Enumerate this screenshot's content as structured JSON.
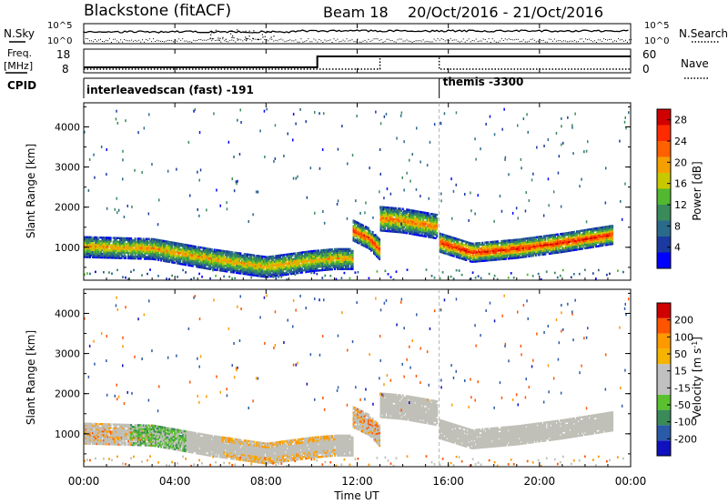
{
  "header": {
    "site": "Blackstone (fitACF)",
    "beam": "Beam 18",
    "date_range": "20/Oct/2016 - 21/Oct/2016"
  },
  "noise_panel": {
    "left_label": "N.Sky",
    "right_label": "N.Search",
    "left_ticks": [
      "10^5",
      "10^0"
    ],
    "right_ticks": [
      "10^5",
      "10^0"
    ]
  },
  "freq_panel": {
    "left_label_1": "Freq.",
    "left_label_2": "[MHz]",
    "left_ticks": [
      "18",
      "8"
    ],
    "right_label": "Nave",
    "right_ticks": [
      "60",
      "0"
    ],
    "freq_step_hour": 10.25,
    "nave_high_start_hour": 13.0,
    "nave_high_end_hour": 15.6
  },
  "cpid": {
    "label": "CPID",
    "segments": [
      {
        "text": "interleavedscan (fast) -191",
        "start_hour": 0
      },
      {
        "text": "themis -3300",
        "start_hour": 15.6
      }
    ]
  },
  "colors": {
    "power_scale": [
      "#0000ff",
      "#1a3aa0",
      "#2a6a8a",
      "#3a8a5a",
      "#52b830",
      "#c8c800",
      "#f5a000",
      "#ff6000",
      "#ff2a00",
      "#d00000"
    ],
    "velocity_scale": [
      "#d00000",
      "#ff5500",
      "#ff9900",
      "#f5b400",
      "#c0c0c0",
      "#c0c0c0",
      "#5ac030",
      "#3a8a5a",
      "#2a5aa8",
      "#1010c0"
    ],
    "ground_scatter": "#c0c0b8"
  },
  "chart_data": [
    {
      "type": "heatmap",
      "title": "Power",
      "xlabel": "Time UT",
      "ylabel": "Slant Range [km]",
      "xlim": [
        0,
        24
      ],
      "ylim": [
        180,
        4600
      ],
      "x_tick_labels": [
        "00:00",
        "04:00",
        "08:00",
        "12:00",
        "16:00",
        "20:00",
        "00:00"
      ],
      "y_tick_labels": [
        "1000",
        "2000",
        "3000",
        "4000"
      ],
      "colorbar_label": "Power [dB]",
      "colorbar_ticks": [
        "4",
        "8",
        "12",
        "16",
        "20",
        "24",
        "28"
      ],
      "colorbar_range": [
        0,
        30
      ],
      "bands": [
        {
          "x": [
            0,
            3,
            5.5,
            8,
            10,
            11,
            11.8
          ],
          "center": [
            1000,
            950,
            700,
            500,
            650,
            700,
            700
          ],
          "half_width": 260,
          "peak_db": 20
        },
        {
          "x": [
            11.8,
            12.5,
            13.0
          ],
          "center": [
            1400,
            1200,
            900
          ],
          "half_width": 250,
          "peak_db": 26
        },
        {
          "x": [
            13.0,
            14.0,
            15.5
          ],
          "center": [
            1700,
            1650,
            1500
          ],
          "half_width": 300,
          "peak_db": 22
        },
        {
          "x": [
            15.6,
            17,
            19,
            21,
            23.2
          ],
          "center": [
            1100,
            850,
            950,
            1100,
            1300
          ],
          "half_width": 230,
          "peak_db": 27
        }
      ]
    },
    {
      "type": "heatmap",
      "title": "Velocity",
      "xlabel": "Time UT",
      "ylabel": "Slant Range [km]",
      "xlim": [
        0,
        24
      ],
      "ylim": [
        180,
        4600
      ],
      "x_tick_labels": [
        "00:00",
        "04:00",
        "08:00",
        "12:00",
        "16:00",
        "20:00",
        "00:00"
      ],
      "y_tick_labels": [
        "1000",
        "2000",
        "3000",
        "4000"
      ],
      "colorbar_label": "Velocity [m s^-1]",
      "colorbar_ticks": [
        "200",
        "100",
        "50",
        "15",
        "-15",
        "-50",
        "-100",
        "-200"
      ],
      "colorbar_range": [
        -250,
        250
      ]
    }
  ]
}
